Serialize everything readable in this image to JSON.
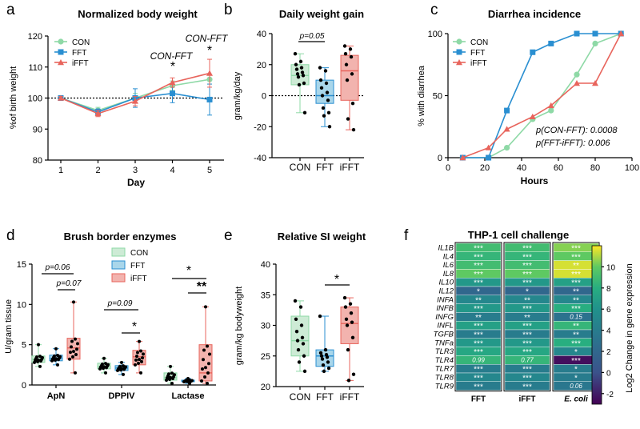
{
  "colors": {
    "CON": "#8ed9a6",
    "FFT": "#2a8fd1",
    "iFFT": "#e8645c",
    "CON_fill": "#cdebd5",
    "FFT_fill": "#a9d6ea",
    "iFFT_fill": "#f2b3ae"
  },
  "chart_data": [
    {
      "type": "line",
      "panel": "a",
      "title": "Normalized body weight",
      "xlabel": "Day",
      "ylabel": "%of birth weight",
      "categories": [
        "1",
        "2",
        "3",
        "4",
        "5"
      ],
      "ylim": [
        80,
        120
      ],
      "yticks": [
        80,
        90,
        100,
        110,
        120
      ],
      "series": [
        {
          "name": "CON",
          "values": [
            100,
            96,
            100,
            104,
            106
          ],
          "err": [
            0.5,
            1,
            1.5,
            1.5,
            1.5
          ]
        },
        {
          "name": "FFT",
          "values": [
            100,
            95.5,
            100,
            101.5,
            99.5
          ],
          "err": [
            0.5,
            1,
            3,
            3,
            5
          ]
        },
        {
          "name": "iFFT",
          "values": [
            100,
            95,
            99,
            105,
            108
          ],
          "err": [
            0.5,
            1,
            1.5,
            1.5,
            4.5
          ]
        }
      ],
      "reference_line": 100,
      "annotations": [
        {
          "text": "CON-FFT",
          "day": "4"
        },
        {
          "text": "*",
          "day": "4"
        },
        {
          "text": "CON-FFT",
          "day": "5"
        },
        {
          "text": "*",
          "day": "5"
        }
      ]
    },
    {
      "type": "box",
      "panel": "b",
      "title": "Daily weight gain",
      "ylabel": "gram/kg/day",
      "categories": [
        "CON",
        "FFT",
        "iFFT"
      ],
      "ylim": [
        -40,
        40
      ],
      "yticks": [
        -40,
        -20,
        0,
        20,
        40
      ],
      "boxes": [
        {
          "min": -11,
          "q1": 7,
          "median": 13,
          "q3": 20,
          "max": 27
        },
        {
          "min": -20,
          "q1": -5,
          "median": 0,
          "q3": 10,
          "max": 18
        },
        {
          "min": -22,
          "q1": -3,
          "median": 16,
          "q3": 26,
          "max": 32
        }
      ],
      "points": [
        [
          27,
          22,
          20,
          18,
          17,
          15,
          14,
          13,
          12,
          8,
          7,
          -11
        ],
        [
          18,
          16,
          10,
          8,
          5,
          2,
          0,
          -3,
          -8,
          -11,
          -13,
          -20
        ],
        [
          32,
          30,
          27,
          25,
          20,
          14,
          10,
          -5,
          -15,
          -22
        ]
      ],
      "annotation": "p=0.05"
    },
    {
      "type": "line",
      "panel": "c",
      "title": "Diarrhea incidence",
      "xlabel": "Hours",
      "ylabel": "% with diarrhea",
      "xlim": [
        0,
        100
      ],
      "ylim": [
        0,
        100
      ],
      "xticks": [
        0,
        20,
        40,
        60,
        80,
        100
      ],
      "yticks": [
        0,
        50,
        100
      ],
      "series": [
        {
          "name": "CON",
          "x": [
            8,
            22,
            32,
            46,
            56,
            70,
            80,
            94
          ],
          "y": [
            0,
            0,
            8,
            31,
            38,
            67,
            92,
            100
          ]
        },
        {
          "name": "FFT",
          "x": [
            8,
            22,
            32,
            46,
            56,
            70,
            80,
            94
          ],
          "y": [
            0,
            0,
            38,
            85,
            92,
            100,
            100,
            100
          ]
        },
        {
          "name": "iFFT",
          "x": [
            8,
            22,
            32,
            46,
            56,
            70,
            80,
            94
          ],
          "y": [
            0,
            8,
            23,
            33,
            42,
            60,
            60,
            100
          ]
        }
      ],
      "annotations": [
        "p(CON-FFT): 0.0008",
        "p(FFT-iFFT): 0.006"
      ]
    },
    {
      "type": "box",
      "panel": "d",
      "title": "Brush border enzymes",
      "ylabel": "U/gram tissue",
      "groups": [
        "ApN",
        "DPPIV",
        "Lactase"
      ],
      "series_names": [
        "CON",
        "FFT",
        "iFFT"
      ],
      "ylim": [
        0,
        15
      ],
      "yticks": [
        0,
        5,
        10,
        15
      ],
      "boxes": [
        [
          {
            "min": 2.3,
            "q1": 2.8,
            "median": 3.2,
            "q3": 3.6,
            "max": 5
          },
          {
            "min": 2.5,
            "q1": 3,
            "median": 3.3,
            "q3": 3.7,
            "max": 4.5
          },
          {
            "min": 1.5,
            "q1": 3.2,
            "median": 4.6,
            "q3": 5.8,
            "max": 10.3
          }
        ],
        [
          {
            "min": 1.5,
            "q1": 2,
            "median": 2.3,
            "q3": 2.7,
            "max": 3.3
          },
          {
            "min": 1.3,
            "q1": 1.8,
            "median": 2.1,
            "q3": 2.4,
            "max": 2.8
          },
          {
            "min": 1.5,
            "q1": 2.5,
            "median": 3.5,
            "q3": 4.3,
            "max": 5.4
          }
        ],
        [
          {
            "min": 0.2,
            "q1": 0.6,
            "median": 0.9,
            "q3": 1.5,
            "max": 2.3
          },
          {
            "min": 0.2,
            "q1": 0.4,
            "median": 0.5,
            "q3": 0.6,
            "max": 0.8
          },
          {
            "min": 0.2,
            "q1": 0.5,
            "median": 1.5,
            "q3": 5,
            "max": 9.7
          }
        ]
      ],
      "annotations": [
        "p=0.06",
        "p=0.07",
        "p=0.09",
        "*",
        "*",
        "**"
      ]
    },
    {
      "type": "box",
      "panel": "e",
      "title": "Relative SI weight",
      "ylabel": "gram/kg bodyweight",
      "categories": [
        "CON",
        "FFT",
        "iFFT"
      ],
      "ylim": [
        20,
        40
      ],
      "yticks": [
        20,
        25,
        30,
        35,
        40
      ],
      "boxes": [
        {
          "min": 22.5,
          "q1": 25,
          "median": 27.5,
          "q3": 31.5,
          "max": 34
        },
        {
          "min": 22.5,
          "q1": 23.3,
          "median": 25,
          "q3": 26,
          "max": 31.5
        },
        {
          "min": 21,
          "q1": 27,
          "median": 30.3,
          "q3": 33,
          "max": 34.5
        }
      ],
      "points": [
        [
          34,
          33,
          31,
          30,
          29,
          28,
          27.5,
          27,
          26,
          25,
          24,
          22.5
        ],
        [
          31.5,
          26,
          25.5,
          25.2,
          25,
          24.8,
          24.5,
          24,
          23.5,
          23,
          22.5
        ],
        [
          34.5,
          33.5,
          33,
          32,
          31,
          30.5,
          30,
          28,
          26,
          22,
          21
        ]
      ],
      "annotation": "*"
    },
    {
      "type": "heatmap",
      "panel": "f",
      "title": "THP-1 cell challenge",
      "colorbar_label": "Log2 Change in gene expression",
      "colorbar_ticks": [
        -2,
        0,
        2,
        4,
        6,
        8,
        10
      ],
      "crange": [
        -3,
        12
      ],
      "columns": [
        "FFT",
        "iFFT",
        "E. coli"
      ],
      "rows": [
        "IL1B",
        "IL4",
        "IL6",
        "IL8",
        "IL10",
        "IL12",
        "INFA",
        "INFB",
        "INFG",
        "INFL",
        "TGFB",
        "TNFa",
        "TLR3",
        "TLR4",
        "TLR7",
        "TLR8",
        "TLR9"
      ],
      "values": [
        [
          9,
          9,
          10.5
        ],
        [
          8.5,
          8.5,
          10
        ],
        [
          9,
          9,
          11.5
        ],
        [
          10,
          10,
          11.5
        ],
        [
          6.5,
          6.5,
          7
        ],
        [
          2,
          2,
          2
        ],
        [
          5,
          5,
          5
        ],
        [
          6.5,
          6.5,
          8
        ],
        [
          4,
          4,
          3
        ],
        [
          7,
          7,
          8.5
        ],
        [
          4,
          4,
          4
        ],
        [
          6.5,
          6.5,
          8
        ],
        [
          7.5,
          7.5,
          5
        ],
        [
          8.5,
          8.5,
          -2.5
        ],
        [
          4,
          4,
          4
        ],
        [
          5,
          5,
          4
        ],
        [
          4,
          4,
          3.5
        ]
      ],
      "labels": [
        [
          "***",
          "***",
          "***"
        ],
        [
          "***",
          "***",
          "***"
        ],
        [
          "***",
          "***",
          "**"
        ],
        [
          "***",
          "***",
          "***"
        ],
        [
          "***",
          "***",
          "***"
        ],
        [
          "*",
          "*",
          "**"
        ],
        [
          "**",
          "**",
          "**"
        ],
        [
          "***",
          "***",
          "***"
        ],
        [
          "**",
          "**",
          "0.15"
        ],
        [
          "***",
          "***",
          "**"
        ],
        [
          "***",
          "***",
          "**"
        ],
        [
          "***",
          "***",
          "***"
        ],
        [
          "***",
          "***",
          "*"
        ],
        [
          "0.99",
          "0.77",
          "***"
        ],
        [
          "***",
          "***",
          "*"
        ],
        [
          "***",
          "***",
          "*"
        ],
        [
          "***",
          "***",
          "0.06"
        ]
      ]
    }
  ],
  "panel_letters": [
    "a",
    "b",
    "c",
    "d",
    "e",
    "f"
  ],
  "legend": {
    "a": [
      "CON",
      "FFT",
      "iFFT"
    ],
    "c": [
      "CON",
      "FFT",
      "iFFT"
    ],
    "d": [
      "CON",
      "FFT",
      "iFFT"
    ]
  }
}
